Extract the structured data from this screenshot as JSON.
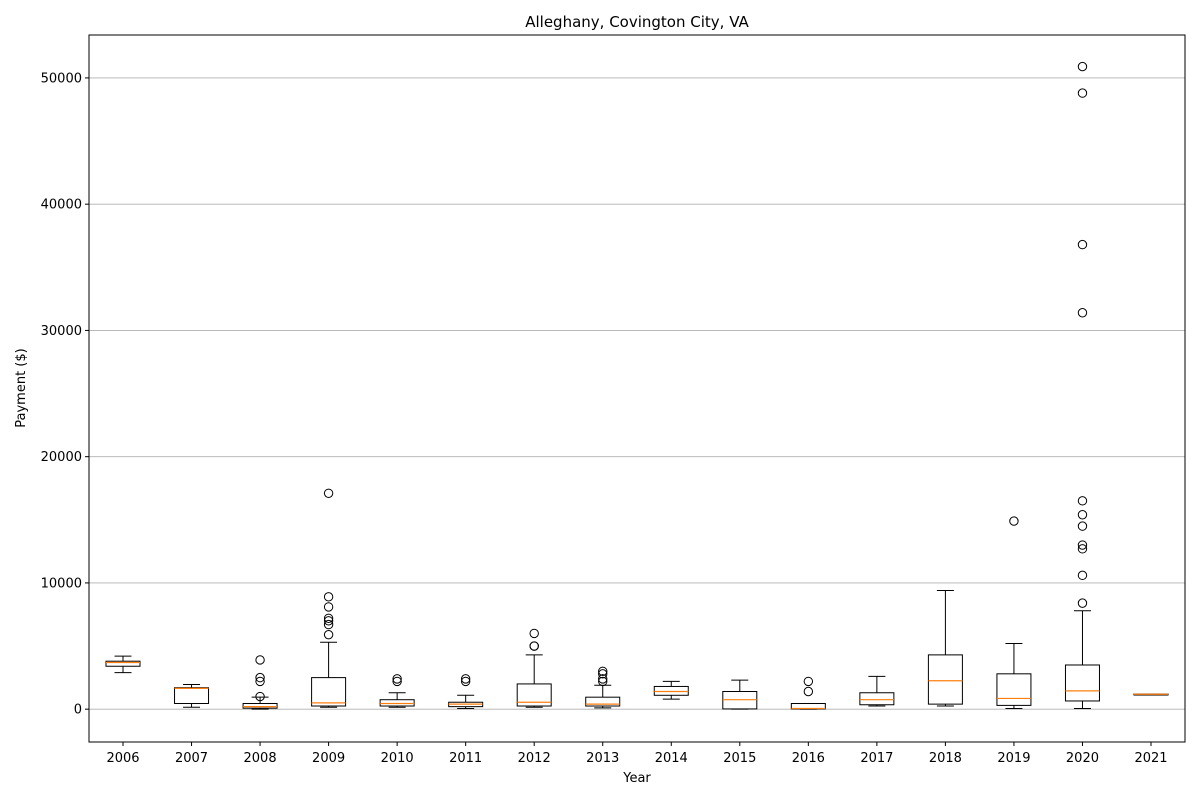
{
  "chart_data": {
    "type": "box",
    "title": "Alleghany, Covington City, VA",
    "xlabel": "Year",
    "ylabel": "Payment ($)",
    "ylim": [
      -2600,
      53400
    ],
    "yticks": [
      0,
      10000,
      20000,
      30000,
      40000,
      50000
    ],
    "ytick_labels": [
      "0",
      "10000",
      "20000",
      "30000",
      "40000",
      "50000"
    ],
    "grid": "y",
    "colors": {
      "box": "#000000",
      "median": "#ff7f0e",
      "grid": "#b0b0b0"
    },
    "categories": [
      "2006",
      "2007",
      "2008",
      "2009",
      "2010",
      "2011",
      "2012",
      "2013",
      "2014",
      "2015",
      "2016",
      "2017",
      "2018",
      "2019",
      "2020",
      "2021"
    ],
    "boxes": [
      {
        "year": "2006",
        "whislo": 2900,
        "q1": 3400,
        "med": 3700,
        "q3": 3800,
        "whishi": 4200,
        "fliers": []
      },
      {
        "year": "2007",
        "whislo": 150,
        "q1": 450,
        "med": 1650,
        "q3": 1700,
        "whishi": 1950,
        "fliers": []
      },
      {
        "year": "2008",
        "whislo": 0,
        "q1": 80,
        "med": 200,
        "q3": 450,
        "whishi": 950,
        "fliers": [
          1000,
          2200,
          2500,
          3900
        ]
      },
      {
        "year": "2009",
        "whislo": 150,
        "q1": 250,
        "med": 500,
        "q3": 2500,
        "whishi": 5300,
        "fliers": [
          5900,
          6700,
          7000,
          7200,
          8100,
          8900,
          17100
        ]
      },
      {
        "year": "2010",
        "whislo": 150,
        "q1": 250,
        "med": 450,
        "q3": 750,
        "whishi": 1300,
        "fliers": [
          2200,
          2400
        ]
      },
      {
        "year": "2011",
        "whislo": 50,
        "q1": 200,
        "med": 400,
        "q3": 550,
        "whishi": 1100,
        "fliers": [
          2200,
          2400
        ]
      },
      {
        "year": "2012",
        "whislo": 150,
        "q1": 250,
        "med": 550,
        "q3": 2000,
        "whishi": 4300,
        "fliers": [
          5000,
          5000,
          6000
        ]
      },
      {
        "year": "2013",
        "whislo": 100,
        "q1": 250,
        "med": 400,
        "q3": 950,
        "whishi": 1900,
        "fliers": [
          2200,
          2400,
          2800,
          3000
        ]
      },
      {
        "year": "2014",
        "whislo": 800,
        "q1": 1100,
        "med": 1400,
        "q3": 1800,
        "whishi": 2200,
        "fliers": []
      },
      {
        "year": "2015",
        "whislo": 0,
        "q1": 20,
        "med": 750,
        "q3": 1400,
        "whishi": 2300,
        "fliers": []
      },
      {
        "year": "2016",
        "whislo": 0,
        "q1": 20,
        "med": 60,
        "q3": 450,
        "whishi": 450,
        "fliers": [
          1400,
          2200
        ]
      },
      {
        "year": "2017",
        "whislo": 250,
        "q1": 350,
        "med": 750,
        "q3": 1300,
        "whishi": 2600,
        "fliers": []
      },
      {
        "year": "2018",
        "whislo": 250,
        "q1": 400,
        "med": 2250,
        "q3": 4300,
        "whishi": 9400,
        "fliers": []
      },
      {
        "year": "2019",
        "whislo": 50,
        "q1": 300,
        "med": 850,
        "q3": 2800,
        "whishi": 5200,
        "fliers": [
          14900
        ]
      },
      {
        "year": "2020",
        "whislo": 50,
        "q1": 650,
        "med": 1450,
        "q3": 3500,
        "whishi": 7800,
        "fliers": [
          8400,
          10600,
          12700,
          13000,
          14500,
          15400,
          16500,
          31400,
          36800,
          48800,
          50900
        ]
      },
      {
        "year": "2021",
        "whislo": 1150,
        "q1": 1150,
        "med": 1180,
        "q3": 1200,
        "whishi": 1200,
        "fliers": []
      }
    ]
  }
}
